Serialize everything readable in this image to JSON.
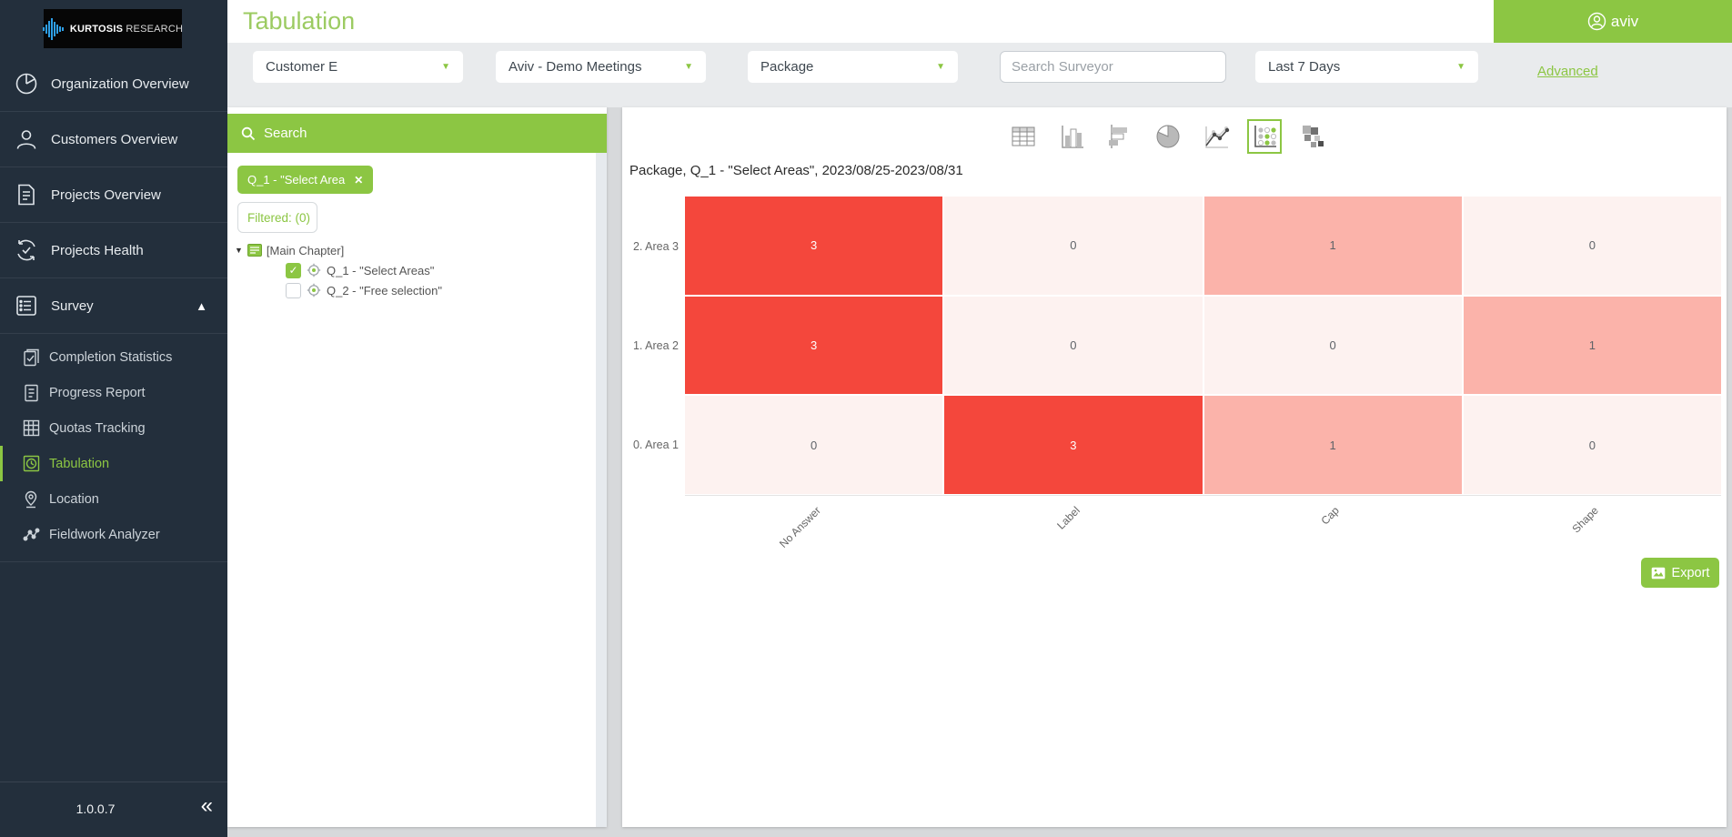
{
  "theme": {
    "accent": "#8cc643",
    "sidebar_bg": "#232f3c",
    "title_green": "#9ccb62"
  },
  "brand": {
    "bold": "KURTOSIS",
    "light": "RESEARCH"
  },
  "header": {
    "title": "Tabulation",
    "user": "aviv"
  },
  "filters": {
    "customer": "Customer E",
    "project": "Aviv - Demo Meetings",
    "package": "Package",
    "surveyor_placeholder": "Search Surveyor",
    "date_range": "Last 7 Days",
    "advanced_label": "Advanced"
  },
  "sidebar": {
    "items": [
      {
        "label": "Organization Overview"
      },
      {
        "label": "Customers Overview"
      },
      {
        "label": "Projects Overview"
      },
      {
        "label": "Projects Health"
      },
      {
        "label": "Survey"
      }
    ],
    "sub_items": [
      {
        "label": "Completion Statistics"
      },
      {
        "label": "Progress Report"
      },
      {
        "label": "Quotas Tracking"
      },
      {
        "label": "Tabulation"
      },
      {
        "label": "Location"
      },
      {
        "label": "Fieldwork Analyzer"
      }
    ],
    "active_item": "Tabulation",
    "version": "1.0.0.7"
  },
  "icons": {
    "survey_collapse": "▲",
    "sidebar_collapse": "«",
    "tree_expander": "▼",
    "chip_close": "✕",
    "check": "✓",
    "dropdown_caret": "▼"
  },
  "question_panel": {
    "search_label": "Search",
    "chip_label": "Q_1 - \"Select Area",
    "filtered_label": "Filtered: (0)",
    "tree": {
      "root": "[Main Chapter]",
      "children": [
        {
          "label": "Q_1 - \"Select Areas\"",
          "checked": true
        },
        {
          "label": "Q_2 - \"Free selection\"",
          "checked": false
        }
      ]
    }
  },
  "chart": {
    "title": "Package, Q_1 - \"Select Areas\", 2023/08/25-2023/08/31",
    "export_label": "Export"
  },
  "chart_data": {
    "type": "heatmap",
    "title": "Package, Q_1 - \"Select Areas\", 2023/08/25-2023/08/31",
    "rows": [
      "2. Area 3",
      "1. Area 2",
      "0. Area 1"
    ],
    "columns": [
      "No Answer",
      "Label",
      "Cap",
      "Shape"
    ],
    "values": [
      [
        3,
        0,
        1,
        0
      ],
      [
        3,
        0,
        0,
        1
      ],
      [
        0,
        3,
        1,
        0
      ]
    ],
    "value_range": [
      0,
      3
    ],
    "colors": {
      "high": "#f4473c",
      "mid": "#fbb3aa",
      "low": "#fdf2f0"
    },
    "legend": "none",
    "x_label_rotation_deg": -45
  }
}
